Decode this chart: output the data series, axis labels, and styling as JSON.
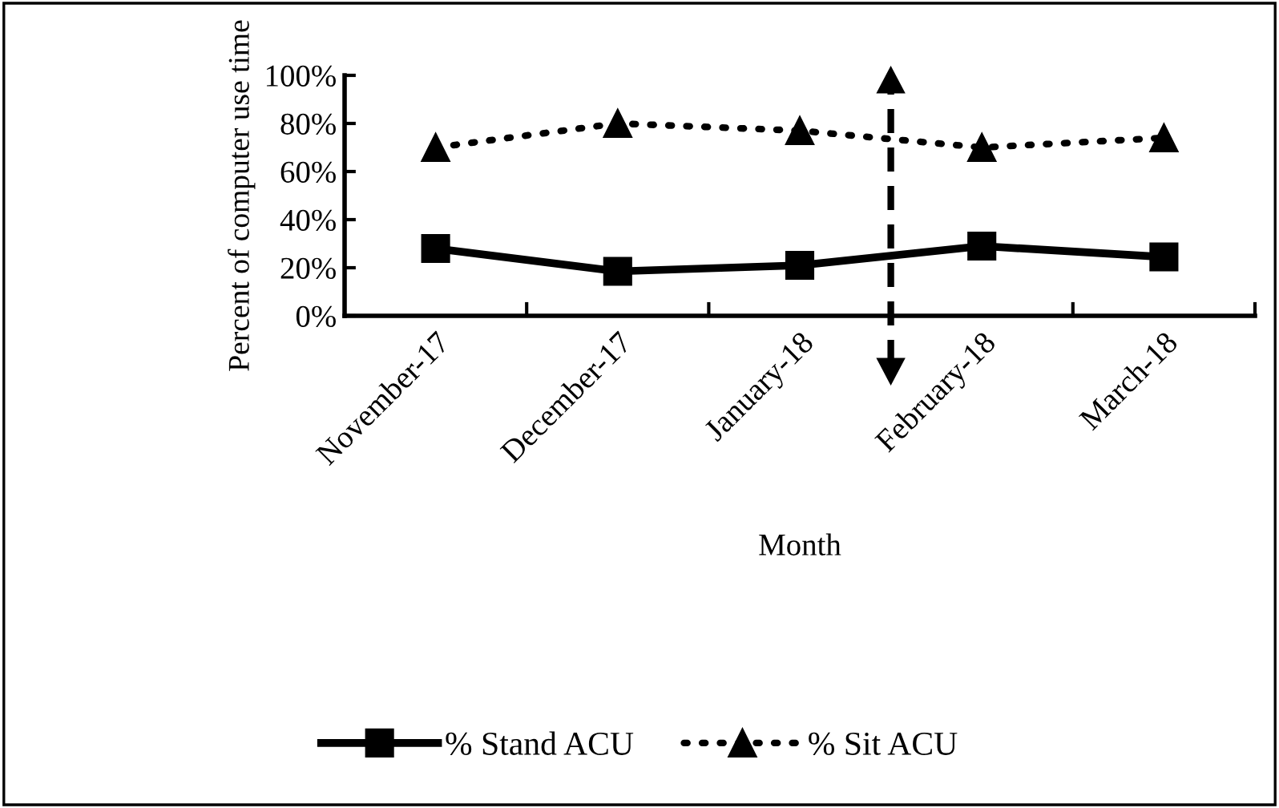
{
  "chart_data": {
    "type": "line",
    "xlabel": "Month",
    "ylabel": "Percent of computer use time",
    "categories": [
      "November-17",
      "December-17",
      "January-18",
      "February-18",
      "March-18"
    ],
    "series": [
      {
        "name": "% Stand ACU",
        "color": "#000000",
        "values": [
          28,
          18.5,
          21,
          29,
          24.5
        ],
        "marker": "square",
        "line_style": "solid"
      },
      {
        "name": "% Sit ACU",
        "color": "#000000",
        "values": [
          70,
          80,
          77,
          70,
          74
        ],
        "marker": "triangle",
        "line_style": "dotted"
      }
    ],
    "ylim": [
      0,
      100
    ],
    "yticks": [
      {
        "value": 0,
        "label": "0%"
      },
      {
        "value": 20,
        "label": "20%"
      },
      {
        "value": 40,
        "label": "40%"
      },
      {
        "value": 60,
        "label": "60%"
      },
      {
        "value": 80,
        "label": "80%"
      },
      {
        "value": 100,
        "label": "100%"
      }
    ],
    "grid": false,
    "legend": "bottom"
  }
}
